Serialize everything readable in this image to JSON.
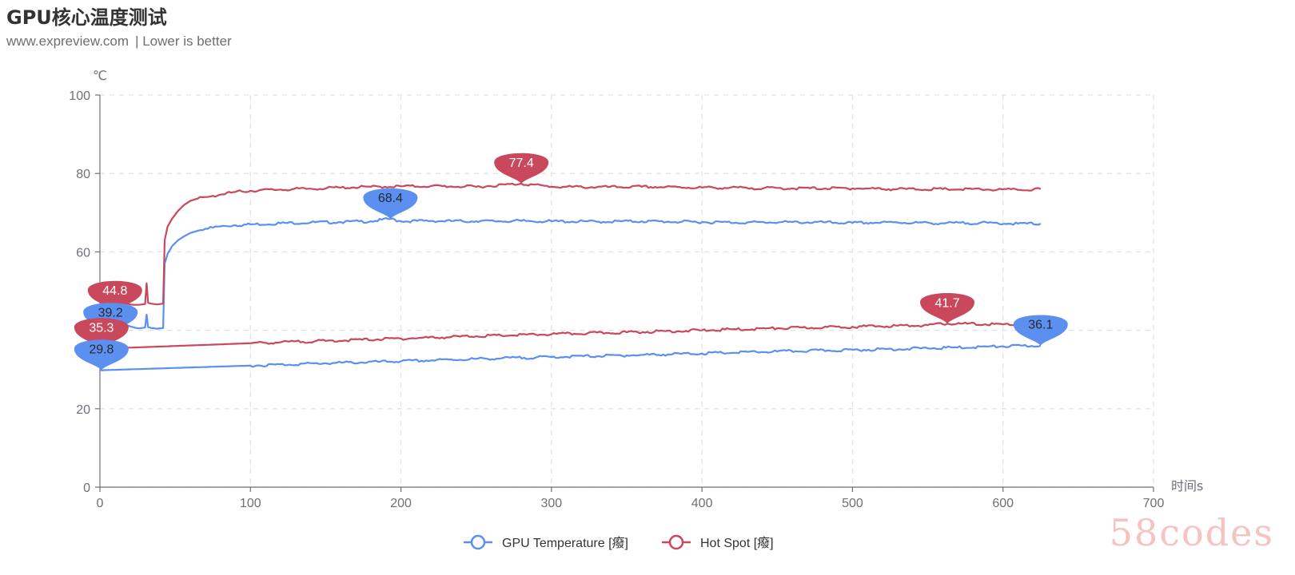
{
  "header": {
    "title": "GPU核心温度测试",
    "source": "www.expreview.com",
    "note": "| Lower is better"
  },
  "watermark": "58codes",
  "chart_data": {
    "type": "line",
    "title": "GPU核心温度测试",
    "subtitle": "www.expreview.com  | Lower is better",
    "xlabel": "时间s",
    "ylabel": "℃",
    "xlim": [
      0,
      700
    ],
    "ylim": [
      0,
      100
    ],
    "x_ticks": [
      0,
      100,
      200,
      300,
      400,
      500,
      600,
      700
    ],
    "y_ticks": [
      0,
      20,
      40,
      60,
      80,
      100
    ],
    "grid": true,
    "legend_position": "bottom",
    "series": [
      {
        "name": "GPU Temperature [癈]",
        "color": "#5b8ff0",
        "values": [
          [
            0,
            39.2
          ],
          [
            3,
            39.0
          ],
          [
            5,
            39.2
          ],
          [
            8,
            39.5
          ],
          [
            10,
            40.0
          ],
          [
            12,
            40.3
          ],
          [
            14,
            40.6
          ],
          [
            15,
            44.0
          ],
          [
            16,
            41.5
          ],
          [
            18,
            41.3
          ],
          [
            20,
            41.0
          ],
          [
            22,
            40.8
          ],
          [
            24,
            40.6
          ],
          [
            26,
            40.5
          ],
          [
            28,
            40.6
          ],
          [
            30,
            40.7
          ],
          [
            31,
            44.0
          ],
          [
            32,
            40.8
          ],
          [
            34,
            40.6
          ],
          [
            36,
            40.5
          ],
          [
            38,
            40.4
          ],
          [
            40,
            40.5
          ],
          [
            42,
            40.6
          ],
          [
            43,
            57.0
          ],
          [
            45,
            59.5
          ],
          [
            48,
            61.5
          ],
          [
            52,
            63.0
          ],
          [
            56,
            64.0
          ],
          [
            60,
            64.8
          ],
          [
            65,
            65.4
          ],
          [
            70,
            65.9
          ],
          [
            75,
            66.2
          ],
          [
            80,
            66.5
          ],
          [
            90,
            66.8
          ],
          [
            100,
            67.0
          ],
          [
            120,
            67.3
          ],
          [
            140,
            67.5
          ],
          [
            160,
            67.6
          ],
          [
            180,
            67.8
          ],
          [
            193,
            68.4
          ],
          [
            200,
            67.8
          ],
          [
            220,
            67.9
          ],
          [
            250,
            67.8
          ],
          [
            280,
            67.9
          ],
          [
            300,
            67.8
          ],
          [
            330,
            67.7
          ],
          [
            360,
            67.8
          ],
          [
            400,
            67.6
          ],
          [
            430,
            67.5
          ],
          [
            460,
            67.6
          ],
          [
            500,
            67.4
          ],
          [
            530,
            67.5
          ],
          [
            560,
            67.3
          ],
          [
            590,
            67.4
          ],
          [
            610,
            67.2
          ],
          [
            625,
            67.2
          ]
        ]
      },
      {
        "name": "Hot Spot [癈]",
        "color": "#c9485c",
        "values": [
          [
            0,
            44.8
          ],
          [
            3,
            44.5
          ],
          [
            5,
            44.6
          ],
          [
            8,
            44.8
          ],
          [
            10,
            45.0
          ],
          [
            12,
            45.5
          ],
          [
            14,
            46.0
          ],
          [
            15,
            50.0
          ],
          [
            16,
            47.0
          ],
          [
            18,
            46.8
          ],
          [
            20,
            46.6
          ],
          [
            22,
            46.5
          ],
          [
            24,
            46.5
          ],
          [
            26,
            46.5
          ],
          [
            28,
            46.6
          ],
          [
            30,
            46.7
          ],
          [
            31,
            52.0
          ],
          [
            32,
            47.0
          ],
          [
            34,
            46.8
          ],
          [
            36,
            46.7
          ],
          [
            38,
            46.6
          ],
          [
            40,
            46.7
          ],
          [
            42,
            46.8
          ],
          [
            43,
            63.0
          ],
          [
            45,
            66.5
          ],
          [
            48,
            68.5
          ],
          [
            52,
            70.5
          ],
          [
            56,
            72.0
          ],
          [
            60,
            73.0
          ],
          [
            65,
            73.6
          ],
          [
            70,
            74.0
          ],
          [
            75,
            74.3
          ],
          [
            80,
            74.6
          ],
          [
            90,
            75.3
          ],
          [
            100,
            75.6
          ],
          [
            120,
            75.9
          ],
          [
            140,
            76.1
          ],
          [
            160,
            76.4
          ],
          [
            180,
            76.6
          ],
          [
            200,
            76.7
          ],
          [
            220,
            76.8
          ],
          [
            250,
            76.6
          ],
          [
            280,
            77.4
          ],
          [
            300,
            76.6
          ],
          [
            330,
            76.5
          ],
          [
            360,
            76.6
          ],
          [
            400,
            76.4
          ],
          [
            430,
            76.3
          ],
          [
            460,
            76.2
          ],
          [
            500,
            76.2
          ],
          [
            530,
            76.0
          ],
          [
            560,
            76.0
          ],
          [
            590,
            75.9
          ],
          [
            610,
            75.8
          ],
          [
            625,
            76.0
          ]
        ]
      },
      {
        "name": "GPU Temperature [癈]",
        "color": "#5b8ff0",
        "values": [
          [
            0,
            29.8
          ],
          [
            50,
            30.4
          ],
          [
            100,
            31.0
          ],
          [
            150,
            31.6
          ],
          [
            200,
            32.1
          ],
          [
            250,
            32.7
          ],
          [
            300,
            33.2
          ],
          [
            350,
            33.6
          ],
          [
            400,
            34.1
          ],
          [
            450,
            34.6
          ],
          [
            500,
            35.0
          ],
          [
            550,
            35.4
          ],
          [
            600,
            35.9
          ],
          [
            625,
            36.1
          ]
        ]
      },
      {
        "name": "Hot Spot [癈]",
        "color": "#c9485c",
        "values": [
          [
            0,
            35.3
          ],
          [
            50,
            36.0
          ],
          [
            100,
            36.7
          ],
          [
            150,
            37.3
          ],
          [
            200,
            37.9
          ],
          [
            250,
            38.5
          ],
          [
            300,
            39.0
          ],
          [
            350,
            39.5
          ],
          [
            400,
            40.0
          ],
          [
            450,
            40.5
          ],
          [
            500,
            40.9
          ],
          [
            550,
            41.3
          ],
          [
            563,
            41.7
          ],
          [
            600,
            41.5
          ],
          [
            625,
            41.6
          ]
        ]
      }
    ],
    "annotations": [
      {
        "series": "Hot Spot [癈]",
        "x": 280,
        "y": 77.4,
        "label": "77.4"
      },
      {
        "series": "GPU Temperature [癈]",
        "x": 193,
        "y": 68.4,
        "label": "68.4"
      },
      {
        "series": "Hot Spot [癈]",
        "x": 10,
        "y": 44.8,
        "label": "44.8"
      },
      {
        "series": "GPU Temperature [癈]",
        "x": 7,
        "y": 39.2,
        "label": "39.2"
      },
      {
        "series": "Hot Spot [癈]",
        "x": 1,
        "y": 35.3,
        "label": "35.3"
      },
      {
        "series": "GPU Temperature [癈]",
        "x": 1,
        "y": 29.8,
        "label": "29.8"
      },
      {
        "series": "Hot Spot [癈]",
        "x": 563,
        "y": 41.7,
        "label": "41.7"
      },
      {
        "series": "GPU Temperature [癈]",
        "x": 625,
        "y": 36.1,
        "label": "36.1"
      }
    ],
    "legend": [
      {
        "name": "GPU Temperature [癈]",
        "color": "#5b8ff0"
      },
      {
        "name": "Hot Spot [癈]",
        "color": "#c9485c"
      }
    ]
  }
}
